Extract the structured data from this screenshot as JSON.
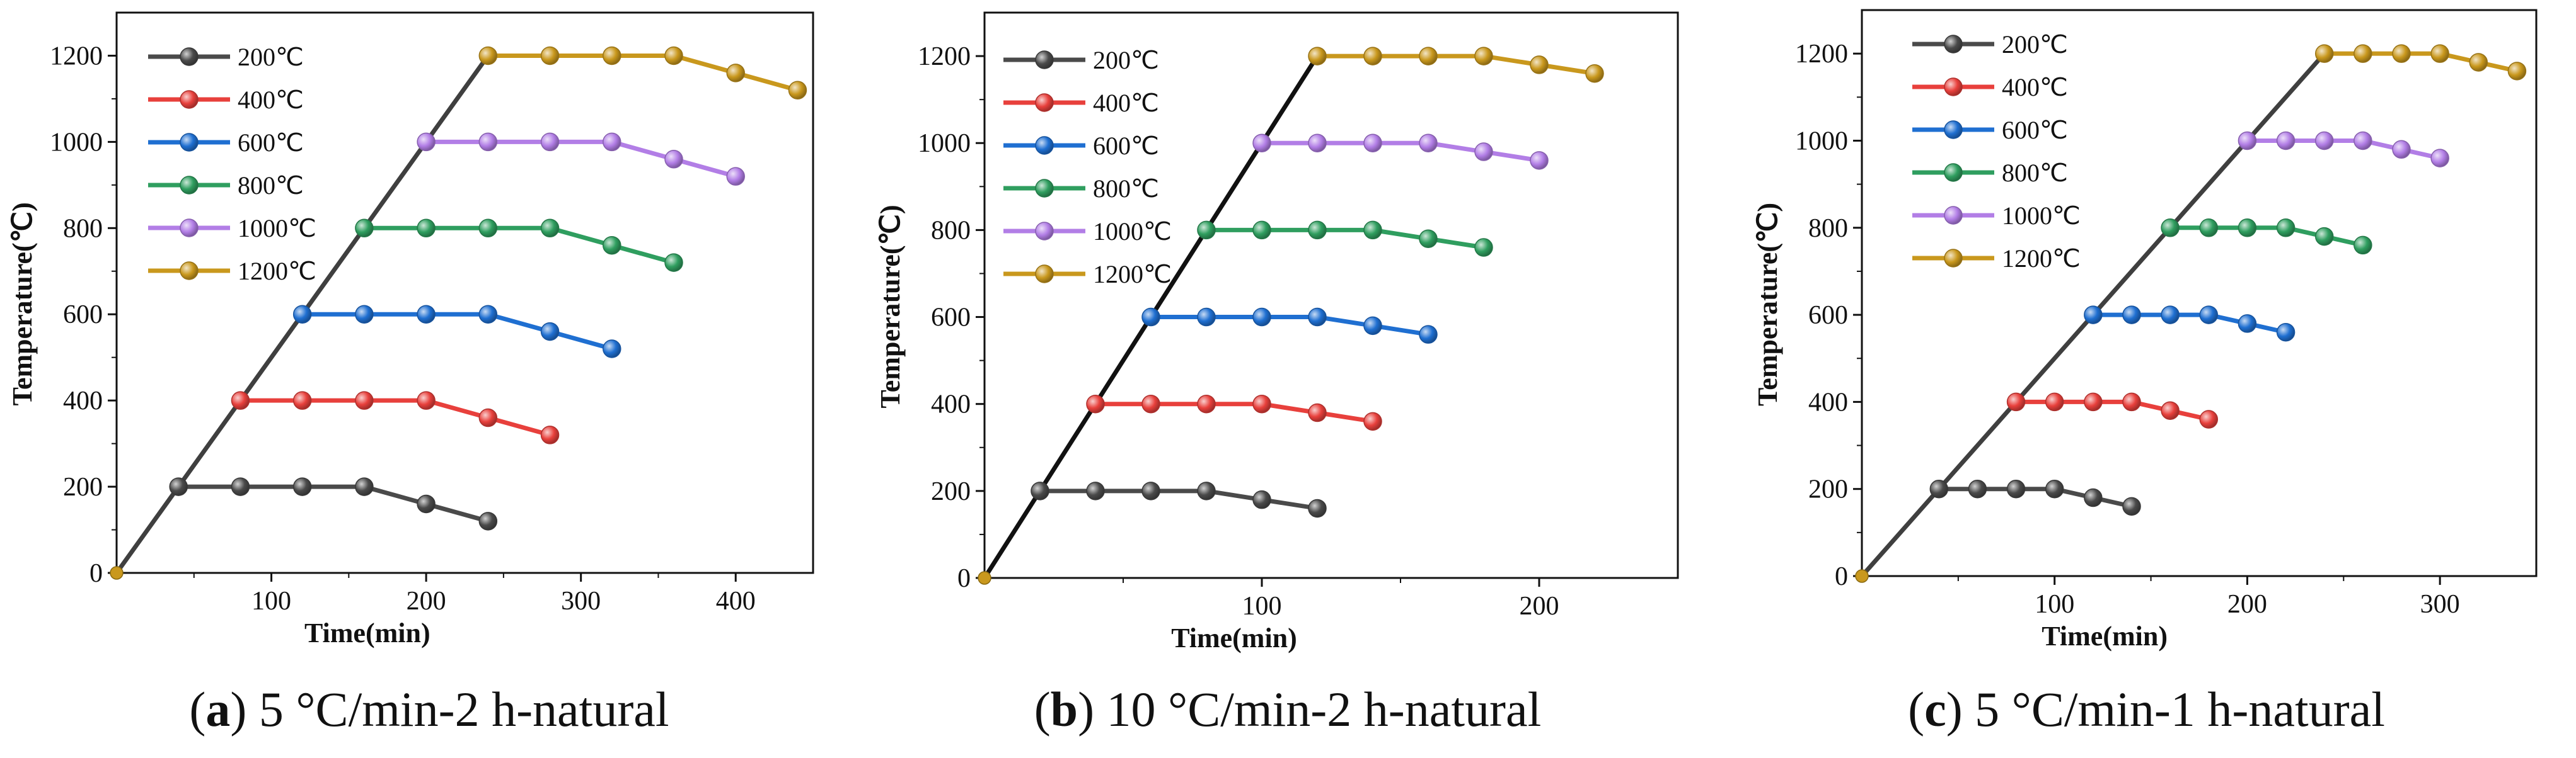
{
  "chart_data": [
    {
      "type": "line",
      "panel_label": "a",
      "caption": "5 °C/min-2 h-natural",
      "xlabel": "Time(min)",
      "ylabel": "Temperature(℃)",
      "xlim": [
        0,
        450
      ],
      "ylim": [
        0,
        1300
      ],
      "xticks": [
        100,
        200,
        300,
        400
      ],
      "yticks": [
        0,
        200,
        400,
        600,
        800,
        1000,
        1200
      ],
      "ramp": {
        "x": [
          0,
          240
        ],
        "y": [
          0,
          1200
        ],
        "color": "#3f3f3f"
      },
      "series": [
        {
          "name": "200℃",
          "color": "#4a4a4a",
          "x": [
            40,
            80,
            120,
            160,
            200,
            240
          ],
          "y": [
            200,
            200,
            200,
            200,
            160,
            120
          ]
        },
        {
          "name": "400℃",
          "color": "#e8403c",
          "x": [
            80,
            120,
            160,
            200,
            240,
            280
          ],
          "y": [
            400,
            400,
            400,
            400,
            360,
            320
          ]
        },
        {
          "name": "600℃",
          "color": "#1f6fd1",
          "x": [
            120,
            160,
            200,
            240,
            280,
            320
          ],
          "y": [
            600,
            600,
            600,
            600,
            560,
            520
          ]
        },
        {
          "name": "800℃",
          "color": "#2f9e5f",
          "x": [
            160,
            200,
            240,
            280,
            320,
            360
          ],
          "y": [
            800,
            800,
            800,
            800,
            760,
            720
          ]
        },
        {
          "name": "1000℃",
          "color": "#b27ee6",
          "x": [
            200,
            240,
            280,
            320,
            360,
            400
          ],
          "y": [
            1000,
            1000,
            1000,
            1000,
            960,
            920
          ]
        },
        {
          "name": "1200℃",
          "color": "#c9981d",
          "x": [
            240,
            280,
            320,
            360,
            400,
            440
          ],
          "y": [
            1200,
            1200,
            1200,
            1200,
            1160,
            1120
          ]
        }
      ]
    },
    {
      "type": "line",
      "panel_label": "b",
      "caption": "10 °C/min-2 h-natural",
      "xlabel": "Time(min)",
      "ylabel": "Temperature(℃)",
      "xlim": [
        0,
        250
      ],
      "ylim": [
        0,
        1300
      ],
      "xticks": [
        100,
        200
      ],
      "yticks": [
        0,
        200,
        400,
        600,
        800,
        1000,
        1200
      ],
      "ramp": {
        "x": [
          0,
          120
        ],
        "y": [
          0,
          1200
        ],
        "color": "#111111"
      },
      "series": [
        {
          "name": "200℃",
          "color": "#4a4a4a",
          "x": [
            20,
            40,
            60,
            80,
            100,
            120
          ],
          "y": [
            200,
            200,
            200,
            200,
            180,
            160
          ]
        },
        {
          "name": "400℃",
          "color": "#e8403c",
          "x": [
            40,
            60,
            80,
            100,
            120,
            140
          ],
          "y": [
            400,
            400,
            400,
            400,
            380,
            360
          ]
        },
        {
          "name": "600℃",
          "color": "#1f6fd1",
          "x": [
            60,
            80,
            100,
            120,
            140,
            160
          ],
          "y": [
            600,
            600,
            600,
            600,
            580,
            560
          ]
        },
        {
          "name": "800℃",
          "color": "#2f9e5f",
          "x": [
            80,
            100,
            120,
            140,
            160,
            180
          ],
          "y": [
            800,
            800,
            800,
            800,
            780,
            760
          ]
        },
        {
          "name": "1000℃",
          "color": "#b27ee6",
          "x": [
            100,
            120,
            140,
            160,
            180,
            200
          ],
          "y": [
            1000,
            1000,
            1000,
            1000,
            980,
            960
          ]
        },
        {
          "name": "1200℃",
          "color": "#c9981d",
          "x": [
            120,
            140,
            160,
            180,
            200,
            220
          ],
          "y": [
            1200,
            1200,
            1200,
            1200,
            1180,
            1160
          ]
        }
      ]
    },
    {
      "type": "line",
      "panel_label": "c",
      "caption": "5 °C/min-1 h-natural",
      "xlabel": "Time(min)",
      "ylabel": "Temperature(℃)",
      "xlim": [
        0,
        350
      ],
      "ylim": [
        0,
        1300
      ],
      "xticks": [
        100,
        200,
        300
      ],
      "yticks": [
        0,
        200,
        400,
        600,
        800,
        1000,
        1200
      ],
      "ramp": {
        "x": [
          0,
          240
        ],
        "y": [
          0,
          1200
        ],
        "color": "#3f3f3f"
      },
      "series": [
        {
          "name": "200℃",
          "color": "#4a4a4a",
          "x": [
            40,
            60,
            80,
            100,
            120,
            140
          ],
          "y": [
            200,
            200,
            200,
            200,
            180,
            160
          ]
        },
        {
          "name": "400℃",
          "color": "#e8403c",
          "x": [
            80,
            100,
            120,
            140,
            160,
            180
          ],
          "y": [
            400,
            400,
            400,
            400,
            380,
            360
          ]
        },
        {
          "name": "600℃",
          "color": "#1f6fd1",
          "x": [
            120,
            140,
            160,
            180,
            200,
            220
          ],
          "y": [
            600,
            600,
            600,
            600,
            580,
            560
          ]
        },
        {
          "name": "800℃",
          "color": "#2f9e5f",
          "x": [
            160,
            180,
            200,
            220,
            240,
            260
          ],
          "y": [
            800,
            800,
            800,
            800,
            780,
            760
          ]
        },
        {
          "name": "1000℃",
          "color": "#b27ee6",
          "x": [
            200,
            220,
            240,
            260,
            280,
            300
          ],
          "y": [
            1000,
            1000,
            1000,
            1000,
            980,
            960
          ]
        },
        {
          "name": "1200℃",
          "color": "#c9981d",
          "x": [
            240,
            260,
            280,
            300,
            320,
            340
          ],
          "y": [
            1200,
            1200,
            1200,
            1200,
            1180,
            1160
          ]
        }
      ]
    }
  ]
}
